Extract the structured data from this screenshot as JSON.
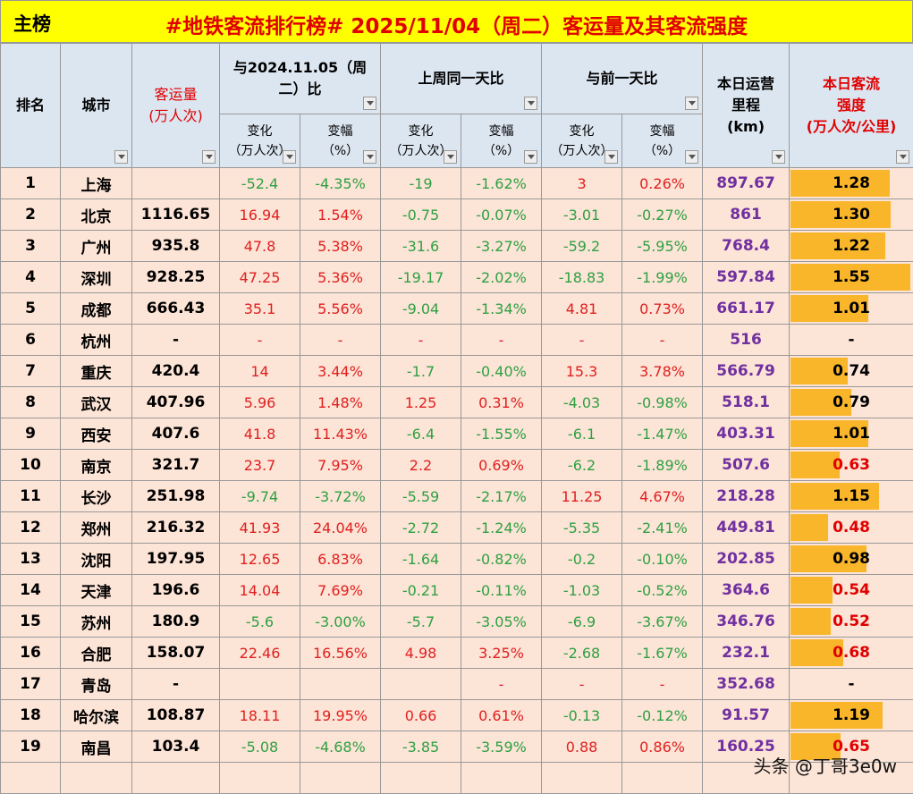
{
  "header": {
    "section": "主榜",
    "title": "#地铁客流排行榜# 2025/11/04（周二）客运量及其客流强度"
  },
  "table": {
    "head": {
      "rank": "排名",
      "city": "城市",
      "volume": "客运量\n(万人次)",
      "groups": [
        "与2024.11.05（周\n二）比",
        "上周同一天比",
        "与前一天比"
      ],
      "sub": [
        "变化\n（万人次）",
        "变幅\n（%）",
        "变化\n（万人次）",
        "变幅\n（%）",
        "变化\n（万人次）",
        "变幅\n（%）"
      ],
      "mileage": "本日运营\n里程\n(km)",
      "intensity": "本日客流\n强度\n(万人次/公里)"
    },
    "rows": [
      [
        "1",
        "上海",
        null,
        "-52.4",
        "-4.35%",
        "-19",
        "-1.62%",
        "3",
        "0.26%",
        "897.67",
        "1.28"
      ],
      [
        "2",
        "北京",
        "1116.65",
        "16.94",
        "1.54%",
        "-0.75",
        "-0.07%",
        "-3.01",
        "-0.27%",
        "861",
        "1.30"
      ],
      [
        "3",
        "广州",
        "935.8",
        "47.8",
        "5.38%",
        "-31.6",
        "-3.27%",
        "-59.2",
        "-5.95%",
        "768.4",
        "1.22"
      ],
      [
        "4",
        "深圳",
        "928.25",
        "47.25",
        "5.36%",
        "-19.17",
        "-2.02%",
        "-18.83",
        "-1.99%",
        "597.84",
        "1.55"
      ],
      [
        "5",
        "成都",
        "666.43",
        "35.1",
        "5.56%",
        "-9.04",
        "-1.34%",
        "4.81",
        "0.73%",
        "661.17",
        "1.01"
      ],
      [
        "6",
        "杭州",
        "-",
        "-",
        "-",
        "-",
        "-",
        "-",
        "-",
        "516",
        "-"
      ],
      [
        "7",
        "重庆",
        "420.4",
        "14",
        "3.44%",
        "-1.7",
        "-0.40%",
        "15.3",
        "3.78%",
        "566.79",
        "0.74"
      ],
      [
        "8",
        "武汉",
        "407.96",
        "5.96",
        "1.48%",
        "1.25",
        "0.31%",
        "-4.03",
        "-0.98%",
        "518.1",
        "0.79"
      ],
      [
        "9",
        "西安",
        "407.6",
        "41.8",
        "11.43%",
        "-6.4",
        "-1.55%",
        "-6.1",
        "-1.47%",
        "403.31",
        "1.01"
      ],
      [
        "10",
        "南京",
        "321.7",
        "23.7",
        "7.95%",
        "2.2",
        "0.69%",
        "-6.2",
        "-1.89%",
        "507.6",
        "0.63"
      ],
      [
        "11",
        "长沙",
        "251.98",
        "-9.74",
        "-3.72%",
        "-5.59",
        "-2.17%",
        "11.25",
        "4.67%",
        "218.28",
        "1.15"
      ],
      [
        "12",
        "郑州",
        "216.32",
        "41.93",
        "24.04%",
        "-2.72",
        "-1.24%",
        "-5.35",
        "-2.41%",
        "449.81",
        "0.48"
      ],
      [
        "13",
        "沈阳",
        "197.95",
        "12.65",
        "6.83%",
        "-1.64",
        "-0.82%",
        "-0.2",
        "-0.10%",
        "202.85",
        "0.98"
      ],
      [
        "14",
        "天津",
        "196.6",
        "14.04",
        "7.69%",
        "-0.21",
        "-0.11%",
        "-1.03",
        "-0.52%",
        "364.6",
        "0.54"
      ],
      [
        "15",
        "苏州",
        "180.9",
        "-5.6",
        "-3.00%",
        "-5.7",
        "-3.05%",
        "-6.9",
        "-3.67%",
        "346.76",
        "0.52"
      ],
      [
        "16",
        "合肥",
        "158.07",
        "22.46",
        "16.56%",
        "4.98",
        "3.25%",
        "-2.68",
        "-1.67%",
        "232.1",
        "0.68"
      ],
      [
        "17",
        "青岛",
        "-",
        null,
        null,
        null,
        "-",
        "-",
        "-",
        "352.68",
        "-"
      ],
      [
        "18",
        "哈尔滨",
        "108.87",
        "18.11",
        "19.95%",
        "0.66",
        "0.61%",
        "-0.13",
        "-0.12%",
        "91.57",
        "1.19"
      ],
      [
        "19",
        "南昌",
        "103.4",
        "-5.08",
        "-4.68%",
        "-3.85",
        "-3.59%",
        "0.88",
        "0.86%",
        "160.25",
        "0.65"
      ]
    ]
  },
  "watermark": "头条 @丁哥3e0w"
}
